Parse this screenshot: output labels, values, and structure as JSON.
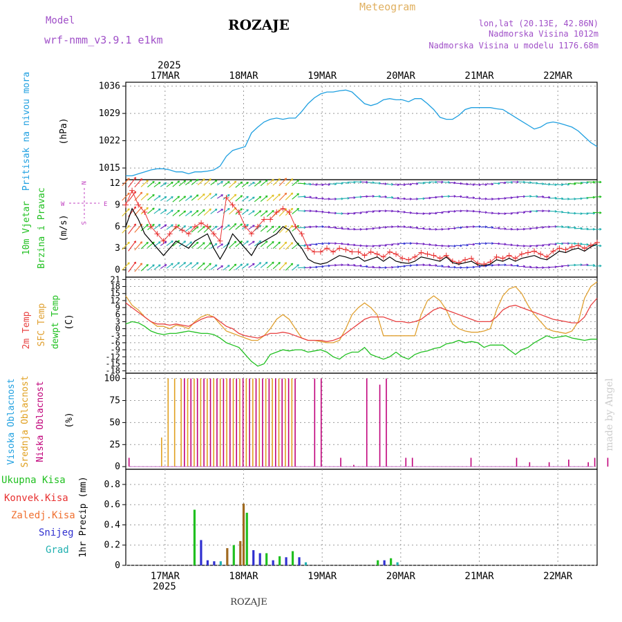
{
  "header": {
    "model_label": "Model",
    "model_name": "wrf-nmm_v3.9.1 e1km",
    "station": "ROZAJE",
    "product": "Meteogram",
    "coords": "lon,lat (20.13E, 42.86N)",
    "elevation": "Nadmorska Visina 1012m",
    "model_elevation": "Nadmorska Visina u modelu 1176.68m"
  },
  "time_axis": {
    "year": "2025",
    "days": [
      "17MAR",
      "18MAR",
      "19MAR",
      "20MAR",
      "21MAR",
      "22MAR"
    ],
    "start": "2025-03-16 12:00",
    "end": "2025-03-22 12:00"
  },
  "footer": {
    "station": "ROZAJE",
    "credit": "made by Angel"
  },
  "colors": {
    "pressure": "#1e9fe0",
    "wind_speed": "#000000",
    "gust": "#e83030",
    "t2m": "#e84040",
    "tsfc": "#e0a030",
    "dewpt": "#20c020",
    "cloud_high": "#20a0e0",
    "cloud_mid": "#e0a020",
    "cloud_low": "#c0007a",
    "precip_total": "#20c020",
    "precip_conv": "#e83030",
    "precip_frozen": "#a06a20",
    "snow": "#3030d0",
    "graupel": "#20b0b0",
    "grid": "#999999"
  },
  "chart_data": [
    {
      "type": "line",
      "ylabel_title": "Pritisak na nivou mora",
      "ylabel": "(hPa)",
      "yticks": [
        1015,
        1022,
        1029,
        1036
      ],
      "ylim": [
        1012,
        1037
      ],
      "series": [
        {
          "values": [
            1013,
            1013,
            1013.5,
            1014,
            1014.5,
            1014.8,
            1014.8,
            1014.5,
            1014,
            1014,
            1013.5,
            1014,
            1014,
            1014.2,
            1014.5,
            1015.5,
            1018,
            1019.5,
            1020,
            1020.5,
            1024,
            1025.5,
            1026.8,
            1027.5,
            1027.8,
            1027.5,
            1027.8,
            1027.8,
            1029.5,
            1031.5,
            1033,
            1034,
            1034.5,
            1034.5,
            1034.8,
            1035,
            1034.5,
            1033,
            1031.5,
            1031,
            1031.5,
            1032.5,
            1032.8,
            1032.5,
            1032.5,
            1032,
            1032.8,
            1032.8,
            1031.5,
            1030,
            1028,
            1027.5,
            1027.5,
            1028.5,
            1030,
            1030.5,
            1030.5,
            1030.5,
            1030.5,
            1030.2,
            1030,
            1029,
            1028,
            1027,
            1026,
            1025,
            1025.5,
            1026.5,
            1026.8,
            1026.5,
            1026,
            1025.5,
            1024.5,
            1023,
            1021.5,
            1020.5
          ]
        }
      ]
    },
    {
      "type": "line",
      "ylabel_title": "10m Vjetar",
      "ylabel_title2": "Brzina i Pravac",
      "ylabel": "(m/s)",
      "compass": {
        "n": "N",
        "e": "E",
        "w": "W",
        "s": "S"
      },
      "yticks": [
        0,
        3,
        6,
        9,
        12
      ],
      "ylim": [
        -1,
        12.5
      ],
      "series": [
        {
          "values": [
            6,
            8.5,
            7,
            5,
            4,
            3,
            2,
            3,
            4,
            3.5,
            3,
            4,
            4.5,
            5,
            3,
            1.5,
            3,
            5,
            4,
            3,
            2,
            3.5,
            4,
            4.5,
            5,
            6,
            5.5,
            4,
            3,
            1.5,
            1,
            0.8,
            1,
            1.5,
            2,
            1.8,
            1.5,
            1.8,
            1.2,
            1.5,
            1.8,
            1.2,
            1.8,
            1.2,
            1.0,
            0.9,
            1.2,
            1.8,
            1.6,
            1.4,
            1.2,
            1.8,
            1.0,
            0.8,
            1.0,
            1.2,
            0.7,
            0.6,
            0.8,
            1.4,
            1.2,
            1.6,
            1.2,
            1.6,
            1.8,
            2.0,
            1.6,
            1.4,
            2.0,
            2.6,
            2.4,
            2.8,
            3.0,
            2.6,
            3.2,
            3.6
          ]
        },
        {
          "values": [
            9,
            11,
            9,
            8,
            6,
            5,
            4,
            5,
            6,
            5.5,
            5,
            6,
            6.5,
            6,
            5,
            4,
            10,
            9,
            8,
            6,
            5,
            6,
            7,
            7,
            8,
            8.5,
            8,
            6,
            5,
            3,
            2.5,
            2.5,
            3,
            2.5,
            3,
            2.8,
            2.5,
            2.5,
            2,
            2.5,
            2.2,
            1.8,
            2.5,
            2.2,
            1.6,
            1.4,
            1.8,
            2.4,
            2.2,
            2.0,
            1.6,
            2.0,
            1.2,
            1.0,
            1.4,
            1.6,
            0.9,
            0.8,
            1.1,
            1.8,
            1.6,
            2.0,
            1.6,
            2.2,
            2.4,
            2.6,
            2.2,
            1.8,
            2.6,
            3.0,
            2.8,
            3.2,
            3.4,
            3.0,
            3.4,
            3.8
          ]
        }
      ]
    },
    {
      "type": "line",
      "ylabel_titles": [
        "2m Temp",
        "SFC Temp",
        "dewpt Temp"
      ],
      "ylabel": "(C)",
      "yticks": [
        -18,
        -15,
        -12,
        -9,
        -6,
        -3,
        0,
        3,
        6,
        9,
        12,
        15,
        18,
        21
      ],
      "ylim": [
        -19,
        22
      ],
      "series": [
        {
          "values": [
            11,
            9,
            7,
            5,
            3,
            2,
            2,
            1.5,
            2,
            1.5,
            1,
            2.5,
            4,
            5,
            5,
            3,
            1,
            0,
            -2,
            -3,
            -3.5,
            -4,
            -3,
            -2,
            -2,
            -1.5,
            -2,
            -3,
            -4,
            -5,
            -5,
            -5,
            -5.5,
            -5,
            -4,
            -2,
            0,
            2,
            4,
            5,
            5,
            5,
            4,
            3,
            3,
            2.5,
            3,
            4,
            6,
            8,
            9,
            8,
            7,
            6,
            5,
            4,
            3,
            3,
            3,
            5,
            8,
            9.5,
            10,
            9,
            8,
            7,
            6,
            5,
            4,
            3.5,
            3,
            2.5,
            2.5,
            5,
            10,
            13
          ]
        },
        {
          "values": [
            14,
            10,
            8,
            5,
            3,
            1,
            1,
            0,
            1.5,
            1,
            0,
            3,
            5,
            6,
            5,
            2,
            -1,
            -2,
            -3,
            -4,
            -5,
            -5,
            -3,
            0,
            4,
            6,
            4,
            0,
            -4,
            -5,
            -5,
            -5.5,
            -6,
            -6,
            -5,
            0,
            6,
            9,
            11,
            9,
            6,
            -3,
            -3,
            -3,
            -3,
            -3,
            -3,
            6,
            12,
            14,
            12,
            8,
            2,
            0,
            -1,
            -1.5,
            -1.5,
            -1,
            0,
            8,
            14,
            17,
            18,
            15,
            10,
            6,
            3,
            0,
            -1,
            -1.5,
            -2,
            -1,
            3,
            13,
            18,
            20
          ]
        },
        {
          "values": [
            2,
            3,
            2.5,
            1,
            -1,
            -2,
            -2.5,
            -2,
            -2,
            -1.5,
            -1,
            -1.5,
            -2,
            -2,
            -2.5,
            -4,
            -6,
            -7,
            -8,
            -11,
            -14,
            -16,
            -15,
            -11,
            -10,
            -9,
            -9.5,
            -9,
            -9,
            -10,
            -9.5,
            -9,
            -10,
            -12,
            -13,
            -11,
            -10,
            -10,
            -8,
            -11,
            -12,
            -13,
            -12,
            -10,
            -12,
            -13,
            -11,
            -10,
            -9.5,
            -8.5,
            -8,
            -6.5,
            -6,
            -5,
            -6,
            -5.5,
            -6,
            -8,
            -7,
            -7,
            -7,
            -9,
            -11,
            -9,
            -8,
            -6,
            -4.5,
            -3,
            -4,
            -3.5,
            -3,
            -4,
            -4.5,
            -5,
            -4.5,
            -4.5
          ]
        }
      ]
    },
    {
      "type": "bar",
      "ylabel_titles": [
        "Visoka Oblacnost",
        "Srednja Oblacnost",
        "Niska Oblacnost"
      ],
      "ylabel": "(%)",
      "yticks": [
        0,
        25,
        50,
        75,
        100
      ],
      "ylim": [
        -3,
        106
      ],
      "series": [
        {
          "type": "low",
          "points": [
            [
              1,
              10
            ],
            [
              18,
              100
            ],
            [
              20,
              100
            ],
            [
              22,
              100
            ],
            [
              24,
              100
            ],
            [
              26,
              100
            ],
            [
              28,
              100
            ],
            [
              30,
              100
            ],
            [
              32,
              100
            ],
            [
              34,
              100
            ],
            [
              36,
              100
            ],
            [
              38,
              100
            ],
            [
              40,
              100
            ],
            [
              42,
              100
            ],
            [
              44,
              100
            ],
            [
              46,
              100
            ],
            [
              48,
              100
            ],
            [
              50,
              100
            ],
            [
              52,
              100
            ],
            [
              58,
              100
            ],
            [
              60,
              100
            ],
            [
              66,
              10
            ],
            [
              70,
              2
            ],
            [
              74,
              100
            ],
            [
              78,
              93
            ],
            [
              80,
              100
            ],
            [
              86,
              10
            ],
            [
              88,
              10
            ],
            [
              106,
              10
            ],
            [
              120,
              10
            ],
            [
              124,
              5
            ],
            [
              130,
              5
            ],
            [
              136,
              8
            ],
            [
              142,
              5
            ],
            [
              144,
              10
            ],
            [
              148,
              10
            ],
            [
              160,
              8
            ],
            [
              168,
              6
            ],
            [
              176,
              10
            ],
            [
              180,
              10
            ],
            [
              190,
              5
            ],
            [
              196,
              8
            ],
            [
              202,
              10
            ],
            [
              206,
              8
            ]
          ]
        },
        {
          "type": "mid",
          "points": [
            [
              11,
              33
            ],
            [
              13,
              100
            ],
            [
              15,
              100
            ],
            [
              17,
              100
            ],
            [
              19,
              100
            ],
            [
              21,
              100
            ],
            [
              23,
              100
            ],
            [
              25,
              100
            ],
            [
              27,
              100
            ],
            [
              29,
              100
            ],
            [
              31,
              100
            ],
            [
              33,
              100
            ],
            [
              35,
              100
            ],
            [
              37,
              100
            ],
            [
              39,
              100
            ],
            [
              41,
              100
            ],
            [
              43,
              100
            ],
            [
              45,
              100
            ],
            [
              47,
              100
            ],
            [
              49,
              100
            ],
            [
              51,
              100
            ]
          ]
        },
        {
          "type": "high",
          "points": [
            [
              214,
              100
            ],
            [
              216,
              100
            ]
          ]
        }
      ]
    },
    {
      "type": "bar",
      "legend": [
        "Ukupna Kisa",
        "Konvek.Kisa",
        "Zaledj.Kisa",
        "Snijeg",
        "Grad"
      ],
      "ylabel": "1hr Precip (mm)",
      "yticks": [
        0,
        0.2,
        0.4,
        0.6,
        0.8
      ],
      "ylim": [
        0,
        0.95
      ],
      "series": [
        {
          "type": "total",
          "points": [
            [
              21,
              0.55
            ],
            [
              33,
              0.2
            ],
            [
              37,
              0.52
            ],
            [
              43,
              0.12
            ],
            [
              47,
              0.09
            ],
            [
              51,
              0.14
            ],
            [
              77,
              0.05
            ],
            [
              81,
              0.07
            ]
          ]
        },
        {
          "type": "frozen",
          "points": [
            [
              31,
              0.17
            ],
            [
              35,
              0.24
            ],
            [
              36,
              0.61
            ]
          ]
        },
        {
          "type": "snow",
          "points": [
            [
              23,
              0.25
            ],
            [
              25,
              0.05
            ],
            [
              27,
              0.04
            ],
            [
              39,
              0.15
            ],
            [
              41,
              0.12
            ],
            [
              45,
              0.05
            ],
            [
              49,
              0.08
            ],
            [
              53,
              0.08
            ],
            [
              79,
              0.05
            ]
          ]
        },
        {
          "type": "graupel",
          "points": [
            [
              29,
              0.04
            ],
            [
              55,
              0.03
            ],
            [
              83,
              0.03
            ]
          ]
        }
      ]
    }
  ]
}
